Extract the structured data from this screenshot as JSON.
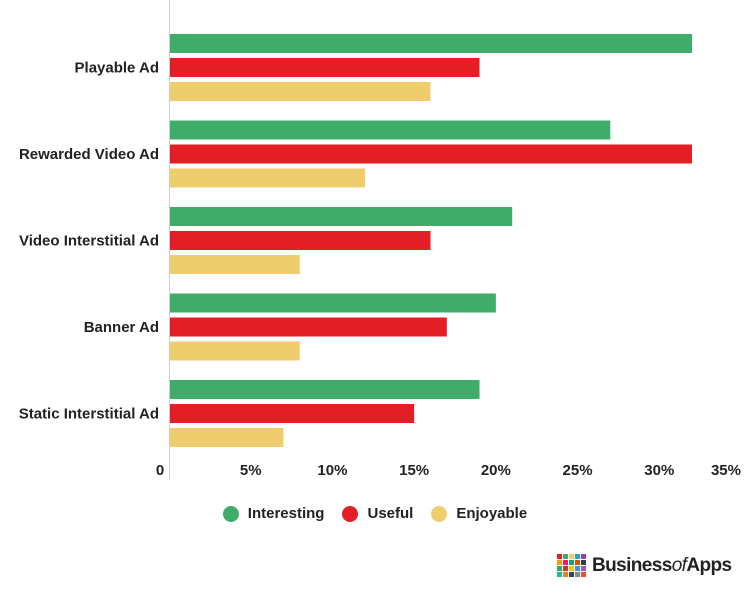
{
  "chart_data": {
    "type": "bar",
    "orientation": "horizontal",
    "categories": [
      "Playable Ad",
      "Rewarded Video Ad",
      "Video Interstitial Ad",
      "Banner Ad",
      "Static Interstitial Ad"
    ],
    "series": [
      {
        "name": "Interesting",
        "color": "#3fac6a",
        "values": [
          32,
          27,
          21,
          20,
          19
        ]
      },
      {
        "name": "Useful",
        "color": "#e31e24",
        "values": [
          19,
          32,
          16,
          17,
          15
        ]
      },
      {
        "name": "Enjoyable",
        "color": "#efcd6c",
        "values": [
          16,
          12,
          8,
          8,
          7
        ]
      }
    ],
    "xlim": [
      0,
      35
    ],
    "x_ticks": [
      "0",
      "5%",
      "10%",
      "15%",
      "20%",
      "25%",
      "30%",
      "35%"
    ],
    "x_tick_values": [
      0,
      5,
      10,
      15,
      20,
      25,
      30,
      35
    ],
    "grid": false,
    "legend_position": "bottom-center"
  },
  "branding": {
    "logo_text_1": "Business",
    "logo_text_2": "of",
    "logo_text_3": "Apps",
    "logo_colors": [
      "#e31e24",
      "#3fac6a",
      "#efcd6c",
      "#2a9fd6",
      "#8e44ad",
      "#f39c12",
      "#e91e63",
      "#16a085",
      "#d35400",
      "#2c3e50",
      "#27ae60",
      "#c0392b",
      "#f1c40f",
      "#3498db",
      "#9b59b6",
      "#1abc9c",
      "#e67e22",
      "#34495e",
      "#7f8c8d",
      "#e74c3c"
    ]
  }
}
